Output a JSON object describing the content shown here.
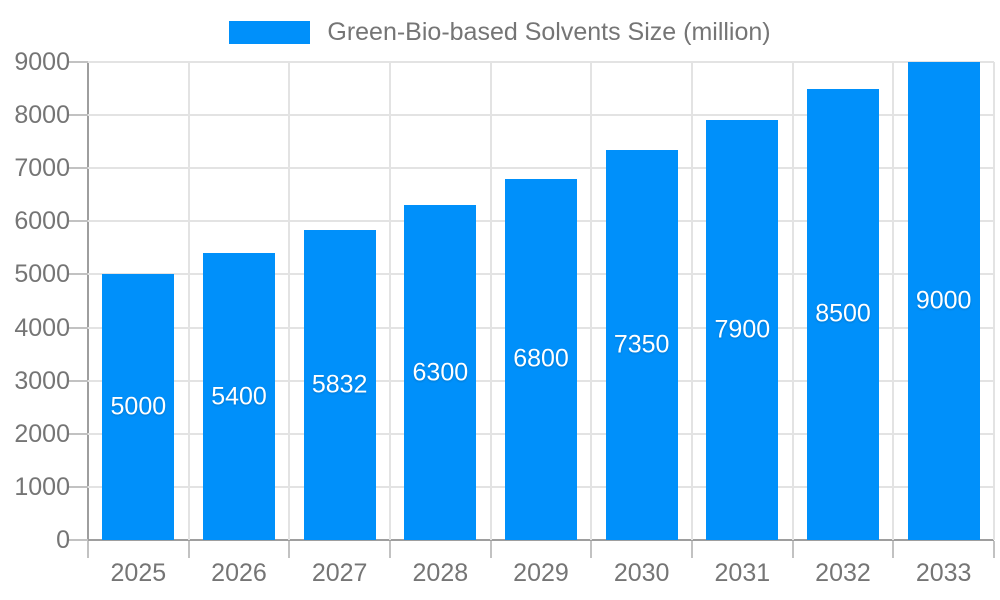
{
  "chart_data": {
    "type": "bar",
    "title": "Green-Bio-based Solvents Size (million)",
    "legend_position": "top",
    "categories": [
      "2025",
      "2026",
      "2027",
      "2028",
      "2029",
      "2030",
      "2031",
      "2032",
      "2033"
    ],
    "series": [
      {
        "name": "Green-Bio-based Solvents Size (million)",
        "values": [
          5000,
          5400,
          5832,
          6300,
          6800,
          7350,
          7900,
          8500,
          9000
        ]
      }
    ],
    "data_labels": [
      "5000",
      "5400",
      "5832",
      "6300",
      "6800",
      "7350",
      "7900",
      "8500",
      "9000"
    ],
    "xlabel": "",
    "ylabel": "",
    "ylim": [
      0,
      9000
    ],
    "ytick_step": 1000,
    "yticks": [
      0,
      1000,
      2000,
      3000,
      4000,
      5000,
      6000,
      7000,
      8000,
      9000
    ],
    "grid": true
  },
  "colors": {
    "bar": "#0090FA",
    "data_label": "#FFFFFF",
    "gridline": "#E3E3E3",
    "axis_line": "#9E9E9E",
    "tick": "#C2C2C2",
    "text": "#757575"
  }
}
